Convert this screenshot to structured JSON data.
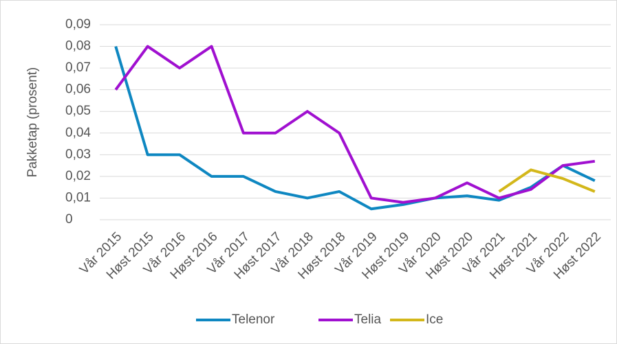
{
  "chart_data": {
    "type": "line",
    "y_label": "Pakketap (prosent)",
    "categories": [
      "Vår 2015",
      "Høst 2015",
      "Vår 2016",
      "Høst 2016",
      "Vår 2017",
      "Høst 2017",
      "Vår 2018",
      "Høst 2018",
      "Vår 2019",
      "Høst 2019",
      "Vår 2020",
      "Høst 2020",
      "Vår 2021",
      "Høst 2021",
      "Vår 2022",
      "Høst 2022"
    ],
    "series": [
      {
        "name": "Telenor",
        "color": "#0e87c1",
        "values": [
          0.08,
          0.03,
          0.03,
          0.02,
          0.02,
          0.013,
          0.01,
          0.013,
          0.005,
          0.007,
          0.01,
          0.011,
          0.009,
          0.015,
          0.025,
          0.018
        ]
      },
      {
        "name": "Telia",
        "color": "#a010d0",
        "values": [
          0.06,
          0.08,
          0.07,
          0.08,
          0.04,
          0.04,
          0.05,
          0.04,
          0.01,
          0.008,
          0.01,
          0.017,
          0.01,
          0.014,
          0.025,
          0.027
        ]
      },
      {
        "name": "Ice",
        "color": "#d3b71a",
        "values": [
          null,
          null,
          null,
          null,
          null,
          null,
          null,
          null,
          null,
          null,
          null,
          null,
          0.013,
          0.023,
          0.019,
          0.013
        ]
      }
    ],
    "ylim": [
      0,
      0.09
    ],
    "yticks": [
      0,
      {
        "value": 0.01,
        "label": "0,01"
      },
      {
        "value": 0.02,
        "label": "0,02"
      },
      {
        "value": 0.03,
        "label": "0,03"
      },
      {
        "value": 0.04,
        "label": "0,04"
      },
      {
        "value": 0.05,
        "label": "0,05"
      },
      {
        "value": 0.06,
        "label": "0,06"
      },
      {
        "value": 0.07,
        "label": "0,07"
      },
      {
        "value": 0.08,
        "label": "0,08"
      },
      {
        "value": 0.09,
        "label": "0,09"
      }
    ],
    "grid": true,
    "legend": "bottom"
  }
}
